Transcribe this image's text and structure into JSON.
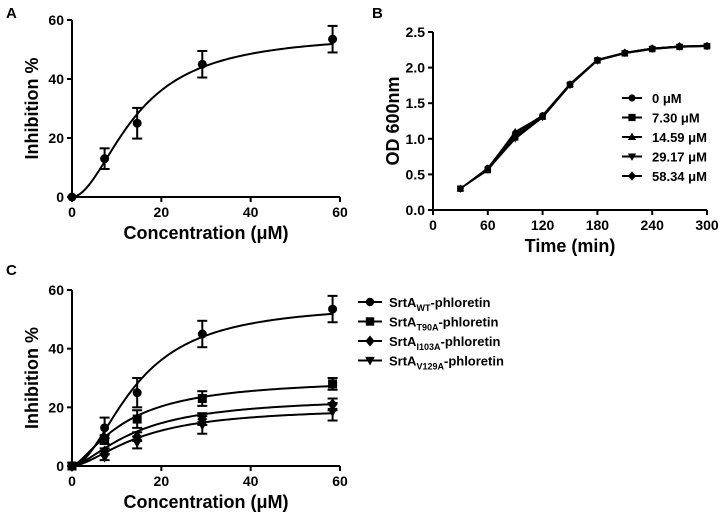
{
  "chart_data": [
    {
      "panel_label": "A",
      "type": "scatter",
      "xlabel": "Concentration (μM)",
      "ylabel": "Inhibition %",
      "xlim": [
        0,
        60
      ],
      "ylim": [
        0,
        60
      ],
      "xticks": [
        "0",
        "20",
        "40",
        "60"
      ],
      "yticks": [
        "0",
        "20",
        "40",
        "60"
      ],
      "series": [
        {
          "name": "SrtA-phloretin",
          "marker": "circle",
          "x": [
            0,
            7.3,
            14.59,
            29.17,
            58.34
          ],
          "y": [
            0,
            13,
            25,
            45,
            53.5
          ],
          "err": [
            0,
            3.5,
            5.2,
            4.5,
            4.5
          ],
          "fit": {
            "top": 55.5,
            "ec50": 14.4,
            "hill": 1.9
          }
        }
      ]
    },
    {
      "panel_label": "B",
      "type": "line",
      "xlabel": "Time (min)",
      "ylabel": "OD 600nm",
      "xlim": [
        0,
        300
      ],
      "ylim": [
        0,
        2.5
      ],
      "xticks": [
        "0",
        "60",
        "120",
        "180",
        "240",
        "300"
      ],
      "yticks": [
        "0.0",
        "0.5",
        "1.0",
        "1.5",
        "2.0",
        "2.5"
      ],
      "legend_position": "right",
      "series": [
        {
          "name": "0 μM",
          "marker": "circle",
          "x": [
            30,
            60,
            90,
            120,
            150,
            180,
            210,
            240,
            270,
            300
          ],
          "y": [
            0.3,
            0.59,
            1.08,
            1.33,
            1.77,
            2.11,
            2.21,
            2.27,
            2.3,
            2.31
          ]
        },
        {
          "name": "7.30 μM",
          "marker": "square",
          "x": [
            30,
            60,
            90,
            120,
            150,
            180,
            210,
            240,
            270,
            300
          ],
          "y": [
            0.3,
            0.56,
            1.02,
            1.31,
            1.76,
            2.1,
            2.2,
            2.26,
            2.29,
            2.3
          ]
        },
        {
          "name": "14.59 μM",
          "marker": "triangle-up",
          "x": [
            30,
            60,
            90,
            120,
            150,
            180,
            210,
            240,
            270,
            300
          ],
          "y": [
            0.3,
            0.58,
            1.1,
            1.32,
            1.77,
            2.11,
            2.21,
            2.27,
            2.3,
            2.31
          ]
        },
        {
          "name": "29.17 μM",
          "marker": "triangle-down",
          "x": [
            30,
            60,
            90,
            120,
            150,
            180,
            210,
            240,
            270,
            300
          ],
          "y": [
            0.3,
            0.57,
            1.0,
            1.3,
            1.75,
            2.1,
            2.2,
            2.26,
            2.29,
            2.3
          ]
        },
        {
          "name": "58.34 μM",
          "marker": "diamond",
          "x": [
            30,
            60,
            90,
            120,
            150,
            180,
            210,
            240,
            270,
            300
          ],
          "y": [
            0.3,
            0.57,
            1.05,
            1.32,
            1.76,
            2.1,
            2.21,
            2.27,
            2.3,
            2.3
          ]
        }
      ]
    },
    {
      "panel_label": "C",
      "type": "scatter",
      "xlabel": "Concentration (μM)",
      "ylabel": "Inhibition %",
      "xlim": [
        0,
        60
      ],
      "ylim": [
        0,
        60
      ],
      "xticks": [
        "0",
        "20",
        "40",
        "60"
      ],
      "yticks": [
        "0",
        "20",
        "40",
        "60"
      ],
      "legend_position": "top-right",
      "series": [
        {
          "name_main": "SrtA",
          "name_sub": "WT",
          "name_suffix": "-phloretin",
          "marker": "circle",
          "x": [
            0,
            7.3,
            14.59,
            29.17,
            58.34
          ],
          "y": [
            0,
            13,
            25,
            45,
            53.5
          ],
          "err": [
            0,
            3.5,
            5.0,
            4.5,
            4.5
          ],
          "fit": {
            "top": 55.5,
            "ec50": 14.4,
            "hill": 1.9
          }
        },
        {
          "name_main": "SrtA",
          "name_sub": "T90A",
          "name_suffix": "-phloretin",
          "marker": "square",
          "x": [
            0,
            7.3,
            14.59,
            29.17,
            58.34
          ],
          "y": [
            0,
            9,
            16,
            23,
            28
          ],
          "err": [
            0,
            1.5,
            3.0,
            2.5,
            2.0
          ],
          "fit": {
            "top": 30,
            "ec50": 12,
            "hill": 1.45
          }
        },
        {
          "name_main": "SrtA",
          "name_sub": "I103A",
          "name_suffix": "-phloretin",
          "marker": "diamond",
          "x": [
            0,
            7.3,
            14.59,
            29.17,
            58.34
          ],
          "y": [
            0,
            5,
            10,
            16,
            21
          ],
          "err": [
            0,
            1.0,
            1.5,
            2.0,
            2.0
          ],
          "fit": {
            "top": 23.5,
            "ec50": 14.5,
            "hill": 1.55
          }
        },
        {
          "name_main": "SrtA",
          "name_sub": "V129A",
          "name_suffix": "-phloretin",
          "marker": "triangle-down",
          "x": [
            0,
            7.3,
            14.59,
            29.17,
            58.34
          ],
          "y": [
            0,
            3,
            8,
            14,
            18.5
          ],
          "err": [
            0,
            1.0,
            2.0,
            3.0,
            3.0
          ],
          "fit": {
            "top": 20,
            "ec50": 15.5,
            "hill": 1.65
          }
        }
      ]
    }
  ]
}
